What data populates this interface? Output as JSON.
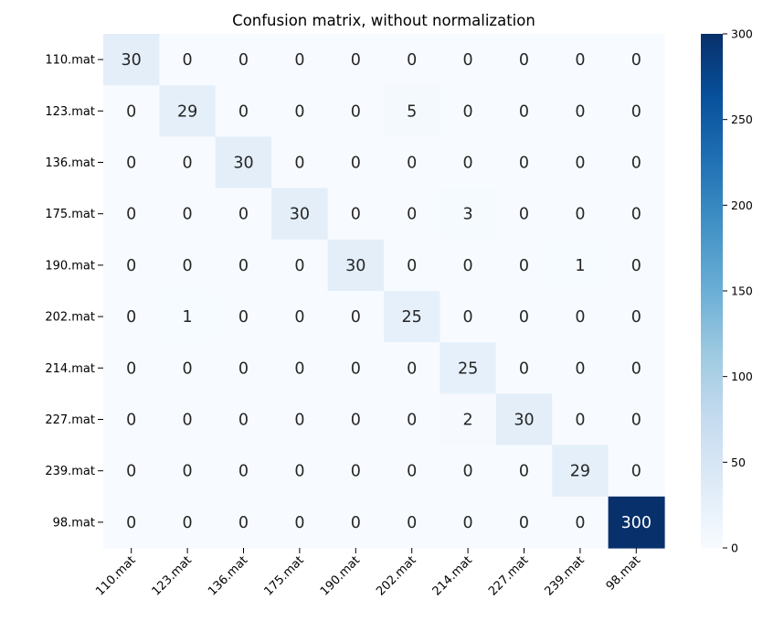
{
  "chart_data": {
    "type": "heatmap",
    "title": "Confusion matrix, without normalization",
    "xlabel": "",
    "ylabel": "",
    "row_labels": [
      "110.mat",
      "123.mat",
      "136.mat",
      "175.mat",
      "190.mat",
      "202.mat",
      "214.mat",
      "227.mat",
      "239.mat",
      "98.mat"
    ],
    "col_labels": [
      "110.mat",
      "123.mat",
      "136.mat",
      "175.mat",
      "190.mat",
      "202.mat",
      "214.mat",
      "227.mat",
      "239.mat",
      "98.mat"
    ],
    "values": [
      [
        30,
        0,
        0,
        0,
        0,
        0,
        0,
        0,
        0,
        0
      ],
      [
        0,
        29,
        0,
        0,
        0,
        5,
        0,
        0,
        0,
        0
      ],
      [
        0,
        0,
        30,
        0,
        0,
        0,
        0,
        0,
        0,
        0
      ],
      [
        0,
        0,
        0,
        30,
        0,
        0,
        3,
        0,
        0,
        0
      ],
      [
        0,
        0,
        0,
        0,
        30,
        0,
        0,
        0,
        1,
        0
      ],
      [
        0,
        1,
        0,
        0,
        0,
        25,
        0,
        0,
        0,
        0
      ],
      [
        0,
        0,
        0,
        0,
        0,
        0,
        25,
        0,
        0,
        0
      ],
      [
        0,
        0,
        0,
        0,
        0,
        0,
        2,
        30,
        0,
        0
      ],
      [
        0,
        0,
        0,
        0,
        0,
        0,
        0,
        0,
        29,
        0
      ],
      [
        0,
        0,
        0,
        0,
        0,
        0,
        0,
        0,
        0,
        300
      ]
    ],
    "colorbar": {
      "min": 0,
      "max": 300,
      "ticks": [
        0,
        50,
        100,
        150,
        200,
        250,
        300
      ],
      "colormap": "Blues"
    },
    "colors": {
      "low": "#f7fbff",
      "high": "#08306b",
      "text_dark": "#262626",
      "text_light": "#ffffff"
    }
  }
}
